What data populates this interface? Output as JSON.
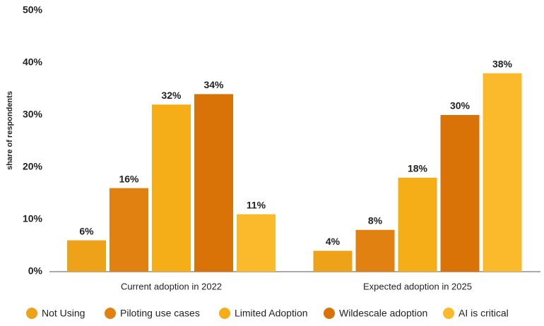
{
  "chart_data": {
    "type": "bar",
    "y_label": "share of respondents",
    "categories": [
      "Current adoption in 2022",
      "Expected adoption in 2025"
    ],
    "series": [
      {
        "name": "Not Using",
        "color": "#eea21a",
        "values": [
          6,
          4
        ],
        "value_labels": [
          "6%",
          "4%"
        ]
      },
      {
        "name": "Piloting use cases",
        "color": "#e08112",
        "values": [
          16,
          8
        ],
        "value_labels": [
          "16%",
          "8%"
        ]
      },
      {
        "name": "Limited Adoption",
        "color": "#f6ae18",
        "values": [
          32,
          18
        ],
        "value_labels": [
          "32%",
          "18%"
        ]
      },
      {
        "name": "Wildescale adoption",
        "color": "#da7307",
        "values": [
          34,
          30
        ],
        "value_labels": [
          "34%",
          "30%"
        ]
      },
      {
        "name": "AI is critical",
        "color": "#fbba2c",
        "values": [
          11,
          38
        ],
        "value_labels": [
          "11%",
          "38%"
        ]
      }
    ],
    "ylim": [
      0,
      50
    ],
    "yticks": [
      {
        "value": 0,
        "label": "0%"
      },
      {
        "value": 10,
        "label": "10%"
      },
      {
        "value": 20,
        "label": "20%"
      },
      {
        "value": 30,
        "label": "30%"
      },
      {
        "value": 40,
        "label": "40%"
      },
      {
        "value": 50,
        "label": "50%"
      }
    ],
    "legend": "bottom"
  }
}
